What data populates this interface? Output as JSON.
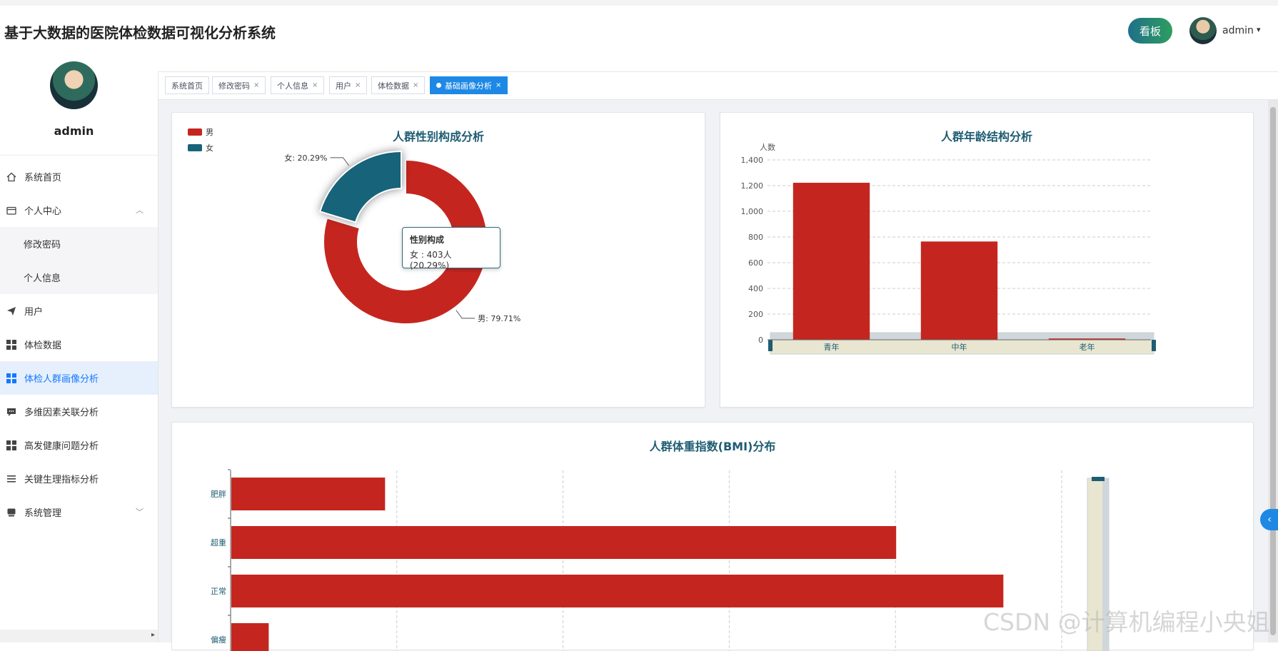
{
  "header": {
    "title": "基于大数据的医院体检数据可视化分析系统",
    "board_label": "看板",
    "username": "admin",
    "caret": "▾"
  },
  "sidebar": {
    "username": "admin",
    "items": [
      {
        "label": "系统首页",
        "icon": "home-icon"
      },
      {
        "label": "个人中心",
        "icon": "wallet-icon",
        "expanded": true
      },
      {
        "label": "修改密码",
        "sub": true
      },
      {
        "label": "个人信息",
        "sub": true
      },
      {
        "label": "用户",
        "icon": "send-icon"
      },
      {
        "label": "体检数据",
        "icon": "grid-icon"
      },
      {
        "label": "体检人群画像分析",
        "icon": "grid-icon",
        "active": true
      },
      {
        "label": "多维因素关联分析",
        "icon": "chat-icon"
      },
      {
        "label": "高发健康问题分析",
        "icon": "grid-icon"
      },
      {
        "label": "关键生理指标分析",
        "icon": "list-icon"
      },
      {
        "label": "系统管理",
        "icon": "server-icon",
        "collapsed": true
      }
    ]
  },
  "tabs": [
    {
      "label": "系统首页",
      "closable": false
    },
    {
      "label": "修改密码",
      "closable": true
    },
    {
      "label": "个人信息",
      "closable": true
    },
    {
      "label": "用户",
      "closable": true
    },
    {
      "label": "体检数据",
      "closable": true
    },
    {
      "label": "基础画像分析",
      "closable": true,
      "active": true
    }
  ],
  "tab_close": "×",
  "chart_data": [
    {
      "type": "pie",
      "title": "人群性别构成分析",
      "legend": [
        "男",
        "女"
      ],
      "legend_position": "top-left",
      "slices": [
        {
          "name": "男",
          "value": 1583,
          "percent": "79.71%",
          "label": "男: 79.71%",
          "color": "#c4261f"
        },
        {
          "name": "女",
          "value": 403,
          "percent": "20.29%",
          "label": "女: 20.29%",
          "color": "#16637a"
        }
      ],
      "tooltip": {
        "title": "性别构成",
        "text": "女 : 403人 (20.29%)"
      }
    },
    {
      "type": "bar",
      "title": "人群年龄结构分析",
      "ylabel": "人数",
      "categories": [
        "青年",
        "中年",
        "老年"
      ],
      "values": [
        1222,
        765,
        10
      ],
      "ylim": [
        0,
        1400
      ],
      "yticks": [
        "0",
        "200",
        "400",
        "600",
        "800",
        "1,000",
        "1,200",
        "1,400"
      ],
      "grid": true,
      "color": "#c4261f",
      "datazoom": true
    },
    {
      "type": "bar",
      "orientation": "horizontal",
      "title": "人群体重指数(BMI)分布",
      "categories": [
        "肥胖",
        "超重",
        "正常",
        "偏瘦"
      ],
      "category_labels_visible": [
        "肥胖",
        "超重",
        "正常",
        "偏瘦"
      ],
      "values": [
        185,
        800,
        929,
        45
      ],
      "xmax": 1000,
      "grid": true,
      "color": "#c4261f",
      "datazoom": true
    }
  ],
  "watermark": "CSDN @计算机编程小央姐",
  "float_button": "‹"
}
